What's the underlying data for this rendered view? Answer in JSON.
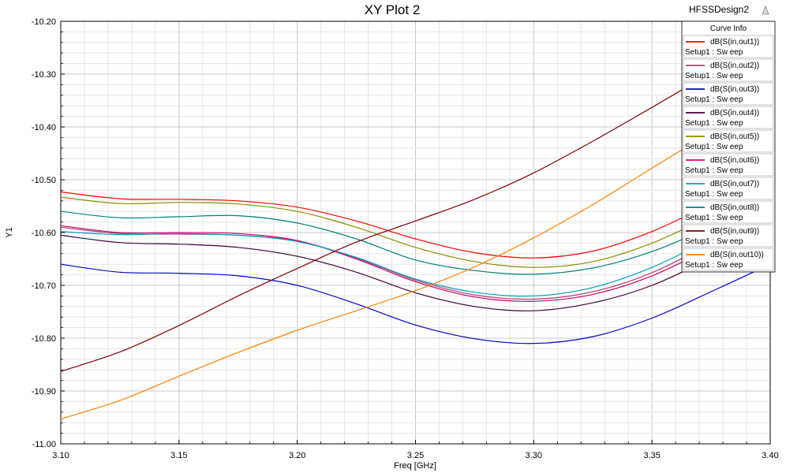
{
  "header": {
    "title": "XY Plot 2",
    "design_name": "HFSSDesign2"
  },
  "legend": {
    "title": "Curve Info"
  },
  "chart_data": {
    "type": "line",
    "title": "XY Plot 2",
    "xlabel": "Freq [GHz]",
    "ylabel": "Y1",
    "xlim": [
      3.1,
      3.4
    ],
    "ylim": [
      -11.0,
      -10.2
    ],
    "xticks": [
      "3.10",
      "3.15",
      "3.20",
      "3.25",
      "3.30",
      "3.35",
      "3.40"
    ],
    "yticks": [
      "-10.20",
      "-10.30",
      "-10.40",
      "-10.50",
      "-10.60",
      "-10.70",
      "-10.80",
      "-10.90",
      "-11.00"
    ],
    "grid": true,
    "legend_position": "top-right",
    "x": [
      3.1,
      3.125,
      3.15,
      3.175,
      3.2,
      3.225,
      3.25,
      3.275,
      3.3,
      3.325,
      3.35,
      3.375,
      3.4
    ],
    "series": [
      {
        "name": "dB(S(in,out1))",
        "subname": "Setup1 : Sw eep",
        "color": "#ff0000",
        "values": [
          -10.523,
          -10.536,
          -10.537,
          -10.54,
          -10.552,
          -10.578,
          -10.612,
          -10.638,
          -10.648,
          -10.635,
          -10.598,
          -10.545,
          -10.488
        ]
      },
      {
        "name": "dB(S(in,out2))",
        "subname": "Setup1 : Sw eep",
        "color": "#b04070",
        "values": [
          -10.59,
          -10.602,
          -10.603,
          -10.605,
          -10.616,
          -10.648,
          -10.69,
          -10.718,
          -10.726,
          -10.712,
          -10.676,
          -10.62,
          -10.56
        ]
      },
      {
        "name": "dB(S(in,out3))",
        "subname": "Setup1 : Sw eep",
        "color": "#0000cc",
        "values": [
          -10.66,
          -10.675,
          -10.677,
          -10.682,
          -10.7,
          -10.735,
          -10.775,
          -10.801,
          -10.81,
          -10.797,
          -10.762,
          -10.712,
          -10.66
        ]
      },
      {
        "name": "dB(S(in,out4))",
        "subname": "Setup1 : Sw eep",
        "color": "#400040",
        "values": [
          -10.605,
          -10.619,
          -10.622,
          -10.628,
          -10.645,
          -10.675,
          -10.714,
          -10.74,
          -10.748,
          -10.733,
          -10.7,
          -10.648,
          -10.59
        ]
      },
      {
        "name": "dB(S(in,out5))",
        "subname": "Setup1 : Sw eep",
        "color": "#8a8a00",
        "values": [
          -10.533,
          -10.545,
          -10.543,
          -10.546,
          -10.56,
          -10.59,
          -10.628,
          -10.655,
          -10.666,
          -10.655,
          -10.62,
          -10.568,
          -10.51
        ]
      },
      {
        "name": "dB(S(in,out6))",
        "subname": "Setup1 : Sw eep",
        "color": "#cc0066",
        "values": [
          -10.587,
          -10.6,
          -10.6,
          -10.602,
          -10.615,
          -10.65,
          -10.693,
          -10.722,
          -10.73,
          -10.717,
          -10.682,
          -10.628,
          -10.57
        ]
      },
      {
        "name": "dB(S(in,out7))",
        "subname": "Setup1 : Sw eep",
        "color": "#00a0c0",
        "values": [
          -10.598,
          -10.604,
          -10.602,
          -10.605,
          -10.617,
          -10.647,
          -10.688,
          -10.713,
          -10.72,
          -10.704,
          -10.666,
          -10.612,
          -10.554
        ]
      },
      {
        "name": "dB(S(in,out8))",
        "subname": "Setup1 : Sw eep",
        "color": "#008080",
        "values": [
          -10.56,
          -10.572,
          -10.57,
          -10.568,
          -10.582,
          -10.612,
          -10.652,
          -10.672,
          -10.679,
          -10.667,
          -10.636,
          -10.588,
          -10.53
        ]
      },
      {
        "name": "dB(S(in,out9))",
        "subname": "Setup1 : Sw eep",
        "color": "#800000",
        "values": [
          -10.863,
          -10.826,
          -10.776,
          -10.72,
          -10.668,
          -10.618,
          -10.578,
          -10.537,
          -10.487,
          -10.427,
          -10.363,
          -10.298,
          -10.236
        ]
      },
      {
        "name": "dB(S(in,out10))",
        "subname": "Setup1 : Sw eep",
        "color": "#ff8000",
        "values": [
          -10.953,
          -10.918,
          -10.872,
          -10.827,
          -10.785,
          -10.748,
          -10.71,
          -10.665,
          -10.61,
          -10.547,
          -10.478,
          -10.41,
          -10.345
        ]
      }
    ]
  }
}
